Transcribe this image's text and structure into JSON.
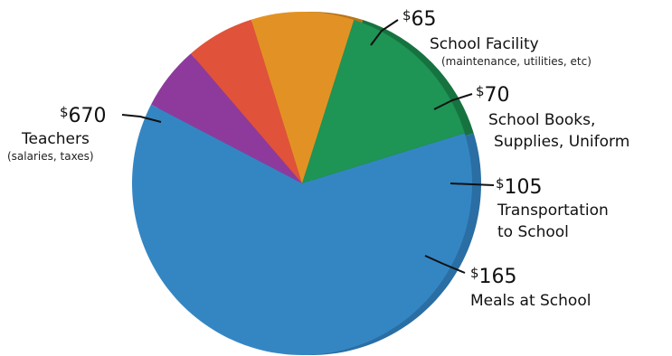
{
  "chart_data": {
    "type": "pie",
    "title": "",
    "slices": [
      {
        "value": 670,
        "display_value": "670",
        "label": "Teachers",
        "note": "(salaries, taxes)",
        "color": "#3486C3",
        "side": "#2A6EA3"
      },
      {
        "value": 65,
        "display_value": "65",
        "label": "School Facility",
        "note": "(maintenance, utilities, etc)",
        "color": "#8E3A9C",
        "side": "#6E2B7A"
      },
      {
        "value": 70,
        "display_value": "70",
        "label": "School Books, Supplies, Uniform",
        "label_lines": [
          "School Books,",
          "Supplies, Uniform"
        ],
        "note": "",
        "color": "#E0523A",
        "side": "#B43E2B"
      },
      {
        "value": 105,
        "display_value": "105",
        "label": "Transportation to School",
        "label_lines": [
          "Transportation",
          "to School"
        ],
        "note": "",
        "color": "#E29224",
        "side": "#B8741A"
      },
      {
        "value": 165,
        "display_value": "165",
        "label": "Meals at School",
        "note": "",
        "color": "#1E9455",
        "side": "#16733F"
      }
    ],
    "currency_symbol": "$",
    "legend": "none"
  }
}
